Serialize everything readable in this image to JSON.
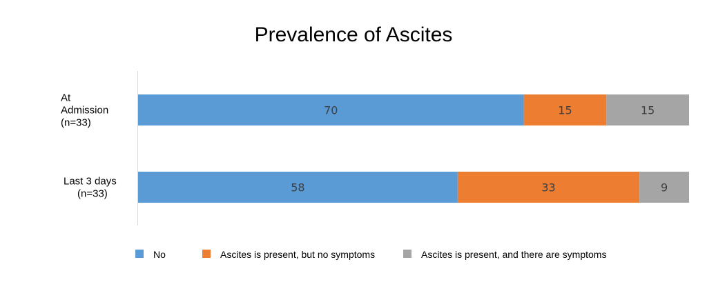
{
  "chart_data": {
    "type": "bar",
    "orientation": "horizontal",
    "stacked": true,
    "percent_stacked": true,
    "title": "Prevalence of Ascites",
    "categories": [
      [
        "At",
        "Admission",
        "(n=33)"
      ],
      [
        "Last 3 days",
        "(n=33)"
      ]
    ],
    "series": [
      {
        "name": "No",
        "values": [
          70,
          58
        ],
        "color": "#5B9BD5"
      },
      {
        "name": "Ascites is present, but no symptoms",
        "values": [
          15,
          33
        ],
        "color": "#ED7D31"
      },
      {
        "name": "Ascites is present, and there are symptoms",
        "values": [
          15,
          9
        ],
        "color": "#A5A5A5"
      }
    ],
    "xlim": [
      0,
      100
    ],
    "grid": false,
    "legend_position": "bottom"
  }
}
